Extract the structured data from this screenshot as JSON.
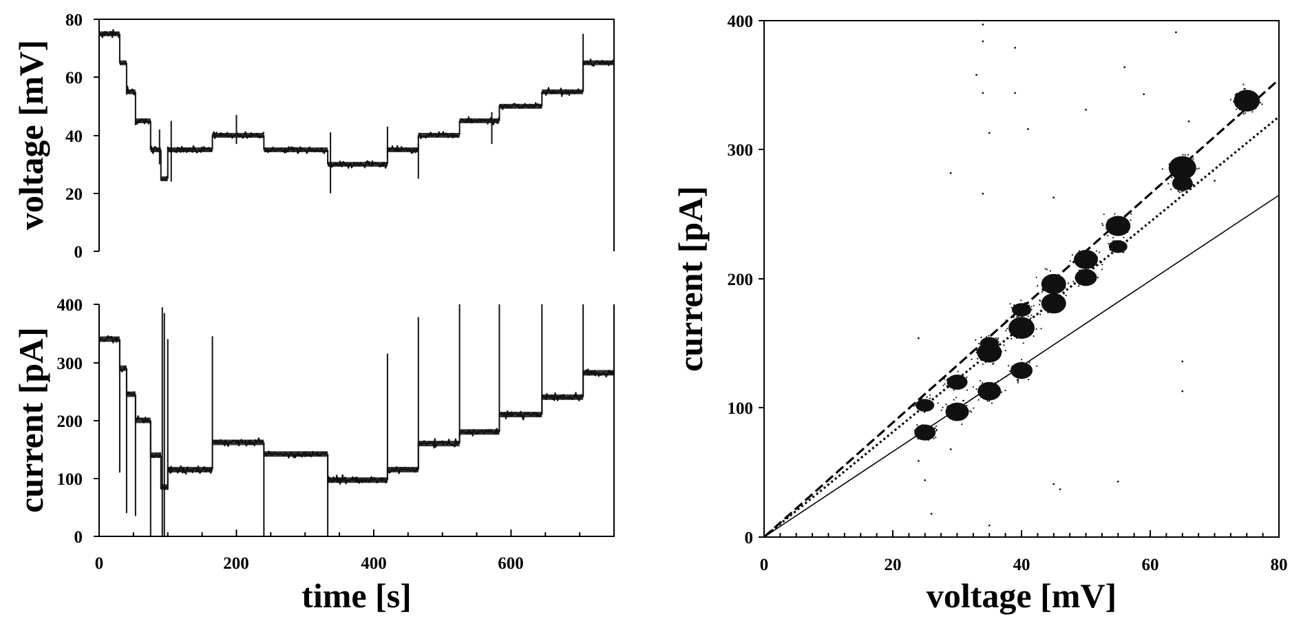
{
  "chart_data": [
    {
      "id": "voltage_vs_time",
      "type": "line",
      "ylabel": "voltage [mV]",
      "xlabel": "",
      "xlim": [
        0,
        750
      ],
      "ylim": [
        0,
        80
      ],
      "xticks": [
        0,
        200,
        400,
        600
      ],
      "yticks": [
        0,
        20,
        40,
        60,
        80
      ],
      "ytick_labels": [
        "0",
        "20",
        "40",
        "60",
        "80"
      ],
      "color": "#111111",
      "steps": [
        {
          "start": 0,
          "end": 30,
          "value": 75
        },
        {
          "start": 30,
          "end": 40,
          "value": 65
        },
        {
          "start": 40,
          "end": 53,
          "value": 55
        },
        {
          "start": 53,
          "end": 75,
          "value": 45
        },
        {
          "start": 75,
          "end": 90,
          "value": 35
        },
        {
          "start": 90,
          "end": 100,
          "value": 25
        },
        {
          "start": 100,
          "end": 165,
          "value": 35
        },
        {
          "start": 165,
          "end": 240,
          "value": 40
        },
        {
          "start": 240,
          "end": 333,
          "value": 35
        },
        {
          "start": 333,
          "end": 420,
          "value": 30
        },
        {
          "start": 420,
          "end": 465,
          "value": 35
        },
        {
          "start": 465,
          "end": 525,
          "value": 40
        },
        {
          "start": 525,
          "end": 583,
          "value": 45
        },
        {
          "start": 583,
          "end": 645,
          "value": 50
        },
        {
          "start": 645,
          "end": 705,
          "value": 55
        },
        {
          "start": 705,
          "end": 750,
          "value": 65
        }
      ],
      "spikes": [
        {
          "t": 88,
          "min": 30,
          "max": 42
        },
        {
          "t": 105,
          "min": 24,
          "max": 45
        },
        {
          "t": 200,
          "min": 37,
          "max": 47
        },
        {
          "t": 337,
          "min": 20,
          "max": 41
        },
        {
          "t": 420,
          "min": 32,
          "max": 43
        },
        {
          "t": 465,
          "min": 25,
          "max": 37
        },
        {
          "t": 572,
          "min": 37,
          "max": 48
        },
        {
          "t": 705,
          "min": 55,
          "max": 75
        }
      ]
    },
    {
      "id": "current_vs_time",
      "type": "line",
      "ylabel": "current [pA]",
      "xlabel": "time [s]",
      "xlim": [
        0,
        750
      ],
      "ylim": [
        0,
        400
      ],
      "xticks": [
        0,
        200,
        400,
        600
      ],
      "xtick_labels": [
        "0",
        "200",
        "400",
        "600"
      ],
      "yticks": [
        0,
        100,
        200,
        300,
        400
      ],
      "ytick_labels": [
        "0",
        "100",
        "200",
        "300",
        "400"
      ],
      "color": "#111111",
      "steps": [
        {
          "start": 0,
          "end": 30,
          "value": 340
        },
        {
          "start": 30,
          "end": 40,
          "value": 290
        },
        {
          "start": 40,
          "end": 53,
          "value": 245
        },
        {
          "start": 53,
          "end": 75,
          "value": 200
        },
        {
          "start": 75,
          "end": 90,
          "value": 140
        },
        {
          "start": 90,
          "end": 100,
          "value": 85
        },
        {
          "start": 100,
          "end": 165,
          "value": 115
        },
        {
          "start": 165,
          "end": 240,
          "value": 162
        },
        {
          "start": 240,
          "end": 333,
          "value": 142
        },
        {
          "start": 333,
          "end": 420,
          "value": 97
        },
        {
          "start": 420,
          "end": 465,
          "value": 115
        },
        {
          "start": 465,
          "end": 525,
          "value": 160
        },
        {
          "start": 525,
          "end": 583,
          "value": 180
        },
        {
          "start": 583,
          "end": 645,
          "value": 210
        },
        {
          "start": 645,
          "end": 705,
          "value": 240
        },
        {
          "start": 705,
          "end": 750,
          "value": 282
        }
      ],
      "spikes": [
        {
          "t": 30,
          "min": 110,
          "max": 340
        },
        {
          "t": 40,
          "min": 40,
          "max": 290
        },
        {
          "t": 53,
          "min": 35,
          "max": 245
        },
        {
          "t": 75,
          "min": 0,
          "max": 200
        },
        {
          "t": 92,
          "min": 0,
          "max": 395
        },
        {
          "t": 95,
          "min": 0,
          "max": 385
        },
        {
          "t": 100,
          "min": 80,
          "max": 340
        },
        {
          "t": 165,
          "min": 115,
          "max": 345
        },
        {
          "t": 240,
          "min": 0,
          "max": 162
        },
        {
          "t": 333,
          "min": 0,
          "max": 142
        },
        {
          "t": 420,
          "min": 97,
          "max": 315
        },
        {
          "t": 465,
          "min": 115,
          "max": 378
        },
        {
          "t": 525,
          "min": 160,
          "max": 400
        },
        {
          "t": 583,
          "min": 180,
          "max": 400
        },
        {
          "t": 645,
          "min": 210,
          "max": 400
        },
        {
          "t": 705,
          "min": 240,
          "max": 400
        }
      ]
    },
    {
      "id": "current_vs_voltage",
      "type": "scatter",
      "xlabel": "voltage [mV]",
      "ylabel": "current [pA]",
      "xlim": [
        0,
        80
      ],
      "ylim": [
        0,
        400
      ],
      "xticks": [
        0,
        20,
        40,
        60,
        80
      ],
      "xtick_labels": [
        "0",
        "20",
        "40",
        "60",
        "80"
      ],
      "yticks": [
        0,
        100,
        200,
        300,
        400
      ],
      "ytick_labels": [
        "0",
        "100",
        "200",
        "300",
        "400"
      ],
      "color": "#111111",
      "clusters": [
        {
          "x": 25,
          "y": 102,
          "size": 0.35
        },
        {
          "x": 25,
          "y": 81,
          "size": 0.55
        },
        {
          "x": 30,
          "y": 120,
          "size": 0.5
        },
        {
          "x": 30,
          "y": 97,
          "size": 0.7
        },
        {
          "x": 35,
          "y": 150,
          "size": 0.35
        },
        {
          "x": 35,
          "y": 143,
          "size": 0.8
        },
        {
          "x": 35,
          "y": 113,
          "size": 0.7
        },
        {
          "x": 40,
          "y": 176,
          "size": 0.4
        },
        {
          "x": 40,
          "y": 162,
          "size": 0.9
        },
        {
          "x": 40,
          "y": 129,
          "size": 0.6
        },
        {
          "x": 45,
          "y": 196,
          "size": 0.8
        },
        {
          "x": 45,
          "y": 181,
          "size": 0.8
        },
        {
          "x": 50,
          "y": 215,
          "size": 0.75
        },
        {
          "x": 50,
          "y": 201,
          "size": 0.6
        },
        {
          "x": 55,
          "y": 241,
          "size": 0.8
        },
        {
          "x": 55,
          "y": 225,
          "size": 0.35
        },
        {
          "x": 65,
          "y": 286,
          "size": 1.0
        },
        {
          "x": 65,
          "y": 274,
          "size": 0.5
        },
        {
          "x": 75,
          "y": 338,
          "size": 0.9
        }
      ],
      "stray_points": [
        {
          "x": 34,
          "y": 397
        },
        {
          "x": 34,
          "y": 384
        },
        {
          "x": 39,
          "y": 379
        },
        {
          "x": 64,
          "y": 391
        },
        {
          "x": 33,
          "y": 358
        },
        {
          "x": 39,
          "y": 344
        },
        {
          "x": 34,
          "y": 344
        },
        {
          "x": 56,
          "y": 364
        },
        {
          "x": 59,
          "y": 343
        },
        {
          "x": 66,
          "y": 322
        },
        {
          "x": 50,
          "y": 331
        },
        {
          "x": 35,
          "y": 313
        },
        {
          "x": 41,
          "y": 316
        },
        {
          "x": 29,
          "y": 282
        },
        {
          "x": 34,
          "y": 266
        },
        {
          "x": 45,
          "y": 263
        },
        {
          "x": 24,
          "y": 154
        },
        {
          "x": 24,
          "y": 59
        },
        {
          "x": 25,
          "y": 44
        },
        {
          "x": 26,
          "y": 18
        },
        {
          "x": 45,
          "y": 41
        },
        {
          "x": 46,
          "y": 37
        },
        {
          "x": 55,
          "y": 43
        },
        {
          "x": 35,
          "y": 9
        },
        {
          "x": 29,
          "y": 68
        },
        {
          "x": 65,
          "y": 136
        },
        {
          "x": 65,
          "y": 113
        },
        {
          "x": 70,
          "y": 276
        }
      ],
      "fit_lines": [
        {
          "style": "dashed",
          "slope": 4.43
        },
        {
          "style": "dotted",
          "slope": 4.07
        },
        {
          "style": "solid",
          "slope": 3.31
        }
      ]
    }
  ]
}
